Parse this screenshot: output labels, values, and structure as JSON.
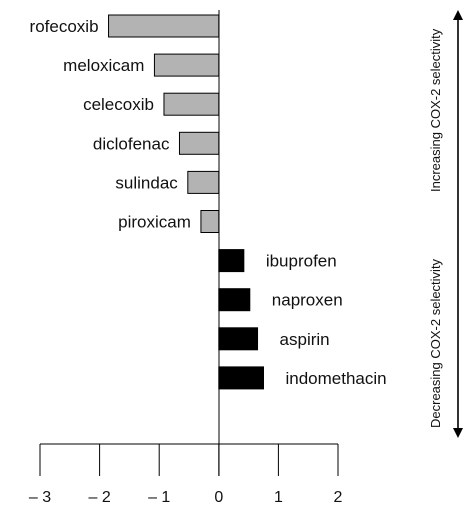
{
  "chart_data": {
    "type": "bar",
    "orientation": "horizontal",
    "title": "",
    "xlabel": "",
    "ylabel": "",
    "xlim": [
      -3,
      2
    ],
    "xticks": [
      -3,
      -2,
      -1,
      0,
      1,
      2
    ],
    "xtick_labels": [
      "– 3",
      "– 2",
      "– 1",
      "0",
      "1",
      "2"
    ],
    "grid": false,
    "legend": "none",
    "categories": [
      "rofecoxib",
      "meloxicam",
      "celecoxib",
      "diclofenac",
      "sulindac",
      "piroxicam",
      "ibuprofen",
      "naproxen",
      "aspirin",
      "indomethacin"
    ],
    "values": [
      -1.85,
      -1.08,
      -0.92,
      -0.66,
      -0.52,
      -0.3,
      0.42,
      0.52,
      0.65,
      0.75
    ],
    "colors": {
      "negative": "#b3b3b3",
      "positive": "#000000",
      "stroke": "#000000"
    },
    "annotations": {
      "top": "Increasing COX-2 selectivity",
      "bottom": "Decreasing COX-2 selectivity"
    }
  }
}
